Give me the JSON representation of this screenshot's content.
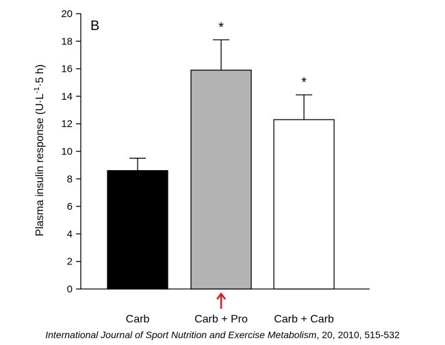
{
  "chart_data": {
    "type": "bar",
    "panel_label": "B",
    "ylabel": {
      "main": "Plasma insulin response (U·L",
      "exp": "-1",
      "tail": "·5 h)"
    },
    "ylim": [
      0,
      20
    ],
    "yticks": [
      0,
      2,
      4,
      6,
      8,
      10,
      12,
      14,
      16,
      18,
      20
    ],
    "categories": [
      "Carb",
      "Carb + Pro",
      "Carb + Carb"
    ],
    "values": [
      8.6,
      15.9,
      12.3
    ],
    "errors": [
      0.9,
      2.2,
      1.8
    ],
    "significance": [
      "",
      "*",
      "*"
    ],
    "bar_colors": [
      "#000000",
      "#b3b3b3",
      "#ffffff"
    ],
    "highlight_category_index": 1,
    "highlight_color": "#e8141b",
    "grid": false
  },
  "citation": {
    "journal": "International Journal of Sport Nutrition and Exercise Metabolism",
    "details": ", 20, 2010, 515-532"
  }
}
